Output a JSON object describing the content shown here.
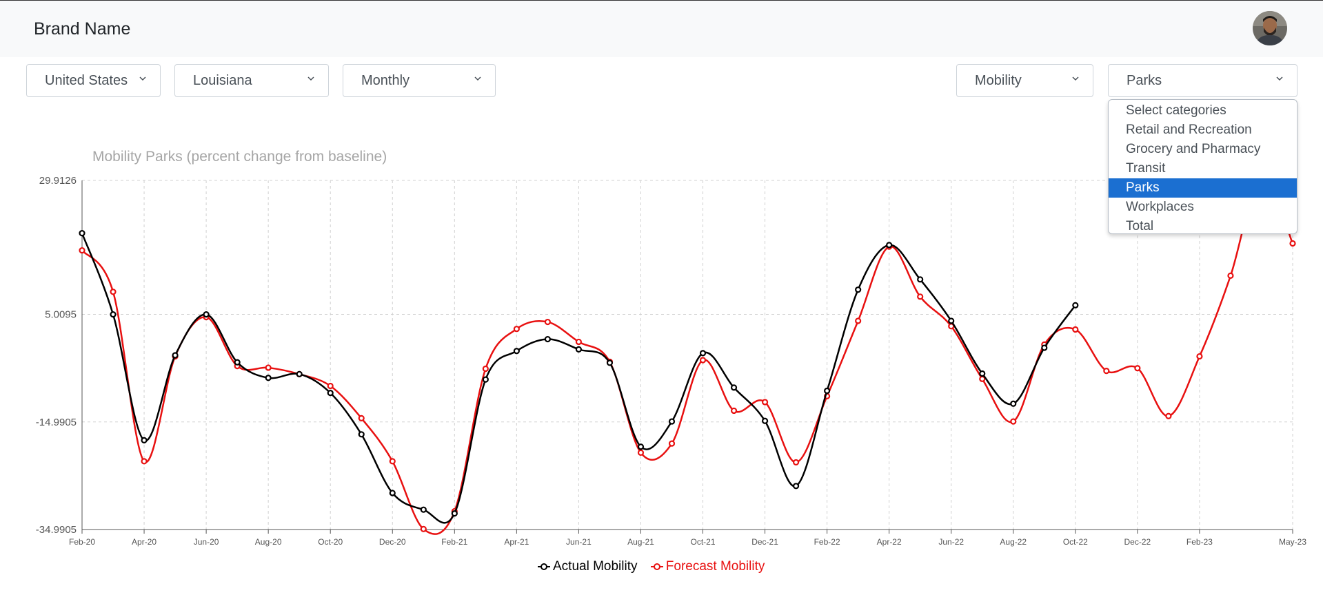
{
  "navbar": {
    "brand": "Brand Name",
    "avatar_icon": "user-avatar"
  },
  "filters": {
    "country": "United States",
    "state": "Louisiana",
    "frequency": "Monthly",
    "metric": "Mobility",
    "category": "Parks"
  },
  "category_dropdown": {
    "options": [
      "Select categories",
      "Retail and Recreation",
      "Grocery and Pharmacy",
      "Transit",
      "Parks",
      "Workplaces",
      "Total"
    ],
    "selected": "Parks"
  },
  "colors": {
    "actual": "#000000",
    "forecast": "#e81010",
    "selected_option": "#1b6fd1",
    "grid": "#d0d0d0"
  },
  "chart_data": {
    "type": "line",
    "title": "Mobility Parks (percent change from baseline)",
    "xlabel": "",
    "ylabel": "",
    "yticks": [
      "29.9126",
      "5.0095",
      "-14.9905",
      "-34.9905"
    ],
    "ylim": [
      -34.9905,
      29.9126
    ],
    "x_tick_labels": [
      "Feb-20",
      "Apr-20",
      "Jun-20",
      "Aug-20",
      "Oct-20",
      "Dec-20",
      "Feb-21",
      "Apr-21",
      "Jun-21",
      "Aug-21",
      "Oct-21",
      "Dec-21",
      "Feb-22",
      "Apr-22",
      "Jun-22",
      "Aug-22",
      "Oct-22",
      "Dec-22",
      "Feb-23",
      "May-23"
    ],
    "x": [
      "Feb-20",
      "Mar-20",
      "Apr-20",
      "May-20",
      "Jun-20",
      "Jul-20",
      "Aug-20",
      "Sep-20",
      "Oct-20",
      "Nov-20",
      "Dec-20",
      "Jan-21",
      "Feb-21",
      "Mar-21",
      "Apr-21",
      "May-21",
      "Jun-21",
      "Jul-21",
      "Aug-21",
      "Sep-21",
      "Oct-21",
      "Nov-21",
      "Dec-21",
      "Jan-22",
      "Feb-22",
      "Mar-22",
      "Apr-22",
      "May-22",
      "Jun-22",
      "Jul-22",
      "Aug-22",
      "Sep-22",
      "Oct-22",
      "Nov-22",
      "Dec-22",
      "Jan-23",
      "Feb-23",
      "Mar-23",
      "Apr-23",
      "May-23"
    ],
    "grid": true,
    "legend_position": "bottom",
    "series": [
      {
        "name": "Actual Mobility",
        "color": "#000000",
        "values": [
          20.1,
          5.0,
          -18.4,
          -2.6,
          5.0,
          -3.9,
          -6.8,
          -6.1,
          -9.6,
          -17.3,
          -28.2,
          -31.3,
          -32.0,
          -7.1,
          -1.8,
          0.4,
          -1.5,
          -4.0,
          -19.6,
          -14.9,
          -2.2,
          -8.6,
          -14.8,
          -26.9,
          -9.2,
          9.6,
          17.9,
          11.5,
          3.8,
          -6.0,
          -11.6,
          -1.2,
          6.7,
          null,
          null,
          null,
          null,
          null,
          null,
          null
        ]
      },
      {
        "name": "Forecast Mobility",
        "color": "#e81010",
        "values": [
          16.9,
          9.2,
          -22.3,
          -2.8,
          4.5,
          -4.6,
          -4.9,
          -6.1,
          -8.3,
          -14.3,
          -22.3,
          -34.9,
          -31.6,
          -5.1,
          2.3,
          3.6,
          -0.1,
          -3.8,
          -20.7,
          -19.0,
          -3.5,
          -12.9,
          -11.3,
          -22.5,
          -10.2,
          3.8,
          17.6,
          8.3,
          2.8,
          -7.0,
          -14.9,
          -0.6,
          2.2,
          -5.5,
          -5.0,
          -13.9,
          -2.8,
          12.2,
          31.0,
          18.2
        ]
      }
    ]
  }
}
